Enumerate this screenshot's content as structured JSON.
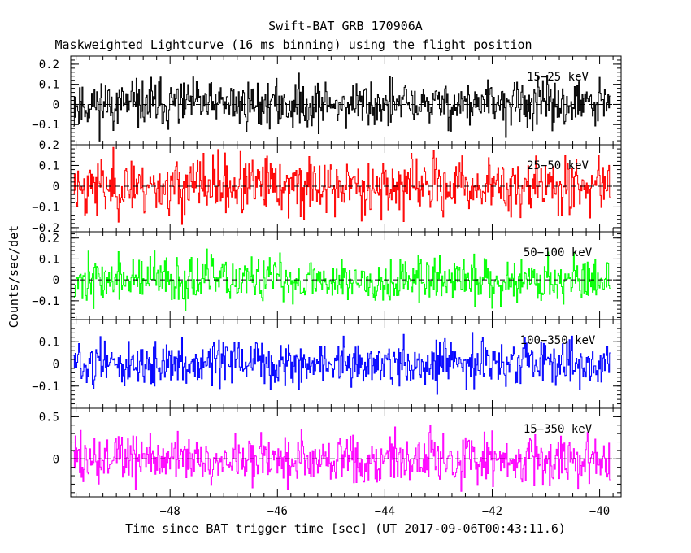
{
  "title": "Swift-BAT GRB 170906A",
  "subtitle": "Maskweighted Lightcurve (16 ms binning) using the flight position",
  "xlabel": "Time since BAT trigger time [sec] (UT 2017-09-06T00:43:11.6)",
  "ylabel": "Counts/sec/det",
  "chart_data": {
    "type": "line",
    "title": "Swift-BAT GRB 170906A",
    "subtitle": "Maskweighted Lightcurve (16 ms binning) using the flight position",
    "xlabel": "Time since BAT trigger time [sec] (UT 2017-09-06T00:43:11.6)",
    "ylabel": "Counts/sec/det",
    "xlim": [
      -49.85,
      -39.6
    ],
    "x_range": [
      -49.8,
      -39.8
    ],
    "bin_width": 0.016,
    "x_ticks": [
      -48,
      -46,
      -44,
      -42,
      -40
    ],
    "x_tick_labels": [
      "−48",
      "−46",
      "−44",
      "−42",
      "−40"
    ],
    "series": [
      {
        "name": "15−25 keV",
        "color": "#000000",
        "ylim": [
          -0.2,
          0.24
        ],
        "y_ticks": [
          -0.1,
          0,
          0.1,
          0.2
        ],
        "y_tick_labels": [
          "−0.1",
          "0",
          "0.1",
          "0.2"
        ],
        "amplitude": 0.06,
        "seed": 11
      },
      {
        "name": "25−50 keV",
        "color": "#ff0000",
        "ylim": [
          -0.22,
          0.2
        ],
        "y_ticks": [
          -0.2,
          -0.1,
          0,
          0.1,
          0.2
        ],
        "y_tick_labels": [
          "−0.2",
          "−0.1",
          "0",
          "0.1",
          "0.2"
        ],
        "amplitude": 0.07,
        "seed": 23
      },
      {
        "name": "50−100 keV",
        "color": "#00ff00",
        "ylim": [
          -0.19,
          0.23
        ],
        "y_ticks": [
          -0.1,
          0,
          0.1,
          0.2
        ],
        "y_tick_labels": [
          "−0.1",
          "0",
          "0.1",
          "0.2"
        ],
        "amplitude": 0.055,
        "seed": 37
      },
      {
        "name": "100−350 keV",
        "color": "#0000ff",
        "ylim": [
          -0.2,
          0.2
        ],
        "y_ticks": [
          -0.1,
          0,
          0.1
        ],
        "y_tick_labels": [
          "−0.1",
          "0",
          "0.1"
        ],
        "amplitude": 0.05,
        "seed": 51
      },
      {
        "name": "15−350 keV",
        "color": "#ff00ff",
        "ylim": [
          -0.45,
          0.6
        ],
        "y_ticks": [
          0,
          0.5
        ],
        "y_tick_labels": [
          "0",
          "0.5"
        ],
        "amplitude": 0.15,
        "seed": 73
      }
    ],
    "zero_line": "dashed",
    "legend": "inside-right"
  }
}
